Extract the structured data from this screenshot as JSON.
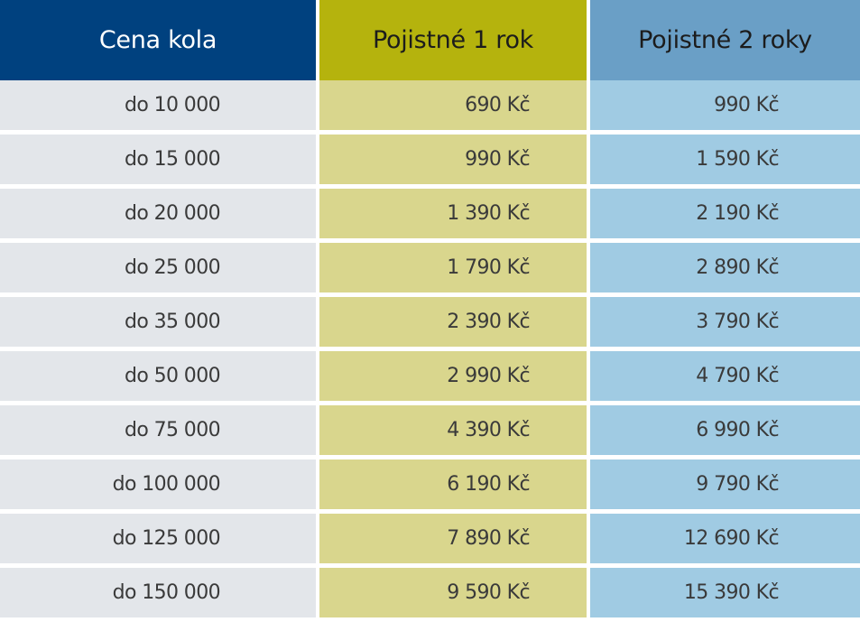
{
  "table": {
    "headers": {
      "price": "Cena kola",
      "year1": "Pojistné 1 rok",
      "year2": "Pojistné 2 roky"
    },
    "rows": [
      {
        "price": "do 10 000",
        "year1": "690 Kč",
        "year2": "990 Kč"
      },
      {
        "price": "do 15 000",
        "year1": "990 Kč",
        "year2": "1 590 Kč"
      },
      {
        "price": "do 20 000",
        "year1": "1 390 Kč",
        "year2": "2 190 Kč"
      },
      {
        "price": "do 25 000",
        "year1": "1 790 Kč",
        "year2": "2 890 Kč"
      },
      {
        "price": "do 35 000",
        "year1": "2 390 Kč",
        "year2": "3 790 Kč"
      },
      {
        "price": "do 50 000",
        "year1": "2 990 Kč",
        "year2": "4 790 Kč"
      },
      {
        "price": "do 75 000",
        "year1": "4 390 Kč",
        "year2": "6 990 Kč"
      },
      {
        "price": "do 100 000",
        "year1": "6 190 Kč",
        "year2": "9 790 Kč"
      },
      {
        "price": "do 125 000",
        "year1": "7 890 Kč",
        "year2": "12 690 Kč"
      },
      {
        "price": "do 150 000",
        "year1": "9 590 Kč",
        "year2": "15 390 Kč"
      }
    ]
  },
  "colors": {
    "header_price_bg": "#00417f",
    "header_year1_bg": "#b5b30d",
    "header_year2_bg": "#6a9fc6",
    "cell_price_bg": "#e3e6ea",
    "cell_year1_bg": "#d9d68d",
    "cell_year2_bg": "#a0cbe3"
  }
}
